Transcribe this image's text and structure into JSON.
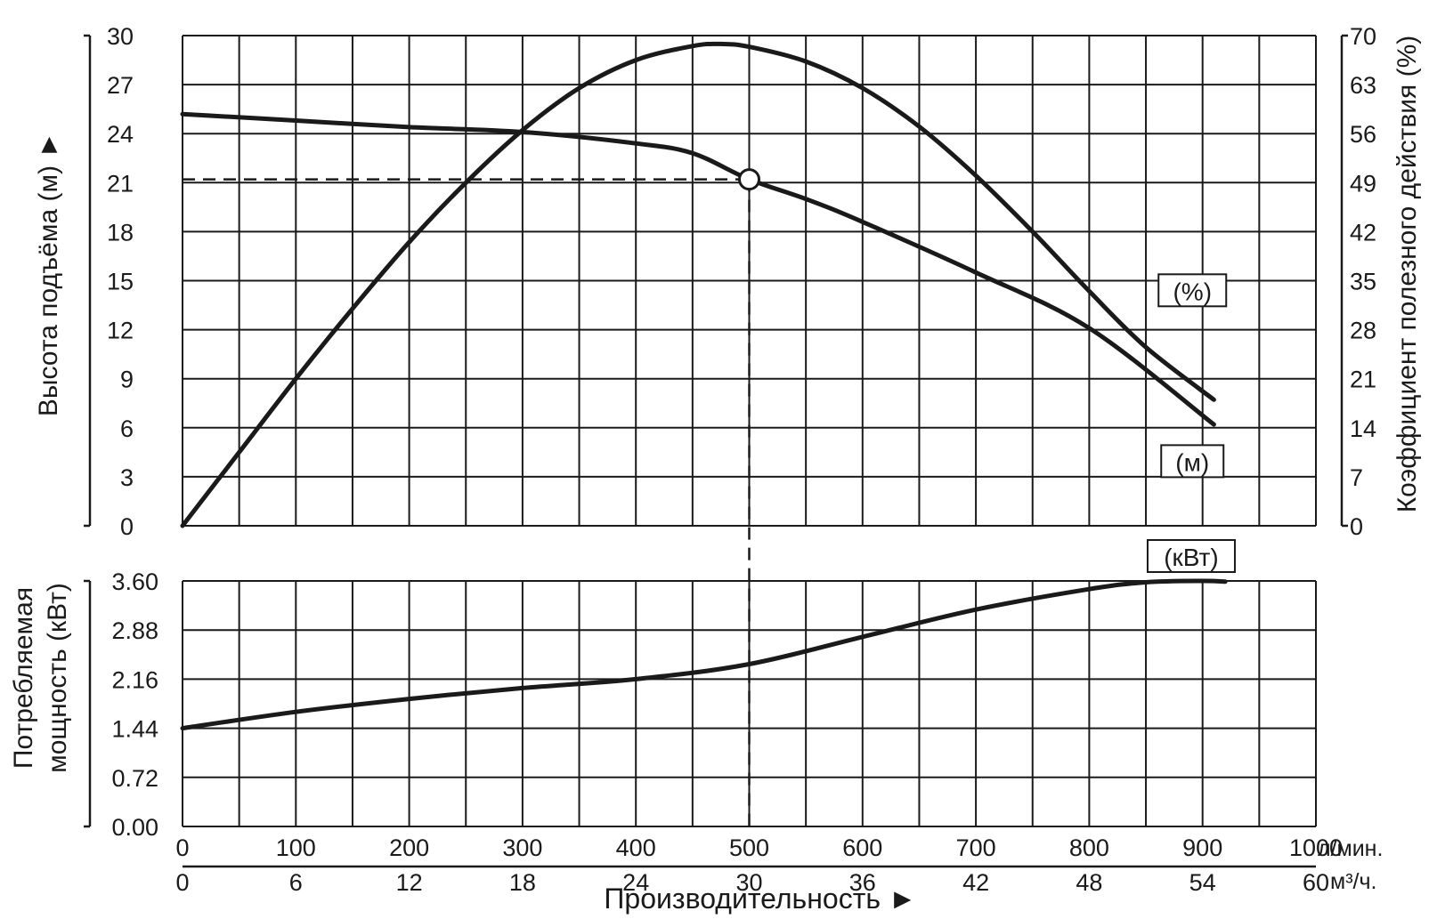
{
  "colors": {
    "background": "#ffffff",
    "grid": "#1a1a1a",
    "curve": "#1a1a1a",
    "text": "#1a1a1a",
    "marker_fill": "#ffffff"
  },
  "chart_data": {
    "type": "line",
    "title": "",
    "grid": true,
    "xlabel": "Производительность ►",
    "x_axis_primary": {
      "unit": "л/мин.",
      "range": [
        0,
        1000
      ],
      "ticks": [
        "0",
        "100",
        "200",
        "300",
        "400",
        "500",
        "600",
        "700",
        "800",
        "900",
        "1000"
      ]
    },
    "x_axis_secondary": {
      "unit": "м³/ч.",
      "range": [
        0,
        60
      ],
      "ticks": [
        "0",
        "6",
        "12",
        "18",
        "24",
        "30",
        "36",
        "42",
        "48",
        "54",
        "60"
      ]
    },
    "upper_panel": {
      "left_axis": {
        "label": "Высота подъёма (м) ►",
        "range": [
          0,
          30
        ],
        "ticks": [
          "0",
          "3",
          "6",
          "9",
          "12",
          "15",
          "18",
          "21",
          "24",
          "27",
          "30"
        ]
      },
      "right_axis": {
        "label": "Коэффициент полезного действия (%)",
        "range": [
          0,
          70
        ],
        "ticks": [
          "0",
          "7",
          "14",
          "21",
          "28",
          "35",
          "42",
          "49",
          "56",
          "63",
          "70"
        ]
      },
      "series": [
        {
          "name": "(м)",
          "axis": "left",
          "x": [
            0,
            100,
            200,
            300,
            400,
            450,
            500,
            550,
            600,
            700,
            800,
            910
          ],
          "y": [
            25.2,
            24.8,
            24.4,
            24.1,
            23.4,
            22.8,
            21.2,
            20.0,
            18.6,
            15.5,
            12.1,
            6.2
          ]
        },
        {
          "name": "(%)",
          "axis": "right",
          "x": [
            0,
            50,
            100,
            150,
            200,
            250,
            300,
            350,
            400,
            450,
            475,
            500,
            550,
            600,
            650,
            700,
            750,
            800,
            850,
            910
          ],
          "y": [
            0,
            10.5,
            21,
            31,
            40.5,
            49,
            56.5,
            62.5,
            66.5,
            68.5,
            68.8,
            68.4,
            66.3,
            62.5,
            57,
            50,
            42,
            33.5,
            25.5,
            18
          ]
        }
      ],
      "operating_point": {
        "x": 500,
        "y": 21.2
      }
    },
    "lower_panel": {
      "left_axis": {
        "label_line1": "Потребляемая",
        "label_line2": "мощность (кВт)",
        "range": [
          0,
          3.6
        ],
        "ticks": [
          "0.00",
          "0.72",
          "1.44",
          "2.16",
          "2.88",
          "3.60"
        ]
      },
      "series": [
        {
          "name": "(кВт)",
          "x": [
            0,
            100,
            200,
            300,
            400,
            500,
            600,
            700,
            800,
            850,
            900,
            920
          ],
          "y": [
            1.44,
            1.68,
            1.87,
            2.03,
            2.16,
            2.38,
            2.78,
            3.18,
            3.48,
            3.58,
            3.6,
            3.59
          ]
        }
      ]
    }
  }
}
